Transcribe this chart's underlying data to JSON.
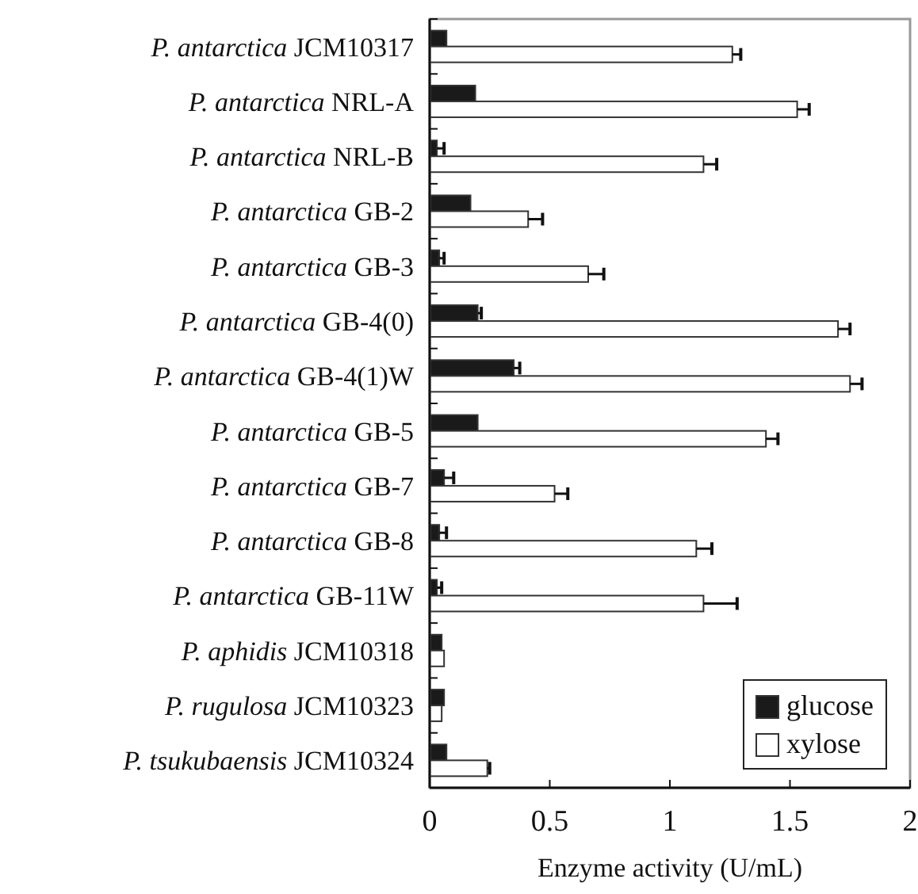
{
  "chart_data": {
    "type": "bar",
    "orientation": "horizontal",
    "xlabel": "Enzyme activity (U/mL)",
    "categories": [
      "P. antarctica JCM10317",
      "P. antarctica NRL-A",
      "P. antarctica NRL-B",
      "P. antarctica GB-2",
      "P. antarctica GB-3",
      "P. antarctica GB-4(0)",
      "P. antarctica GB-4(1)W",
      "P. antarctica GB-5",
      "P. antarctica GB-7",
      "P. antarctica GB-8",
      "P. antarctica GB-11W",
      "P. aphidis JCM10318",
      "P. rugulosa JCM10323",
      "P. tsukubaensis JCM10324"
    ],
    "series": [
      {
        "name": "glucose",
        "color": "#1a1a1a",
        "values": [
          0.07,
          0.19,
          0.03,
          0.17,
          0.04,
          0.2,
          0.35,
          0.2,
          0.06,
          0.04,
          0.03,
          0.05,
          0.06,
          0.07
        ],
        "errors": [
          null,
          null,
          0.03,
          null,
          0.02,
          0.015,
          0.025,
          null,
          0.04,
          0.03,
          0.02,
          null,
          null,
          null
        ]
      },
      {
        "name": "xylose",
        "color": "#ffffff",
        "values": [
          1.26,
          1.53,
          1.14,
          0.41,
          0.66,
          1.7,
          1.75,
          1.4,
          0.52,
          1.11,
          1.14,
          0.06,
          0.05,
          0.24
        ],
        "errors": [
          0.035,
          0.05,
          0.055,
          0.06,
          0.065,
          0.05,
          0.05,
          0.05,
          0.055,
          0.065,
          0.14,
          null,
          null,
          0.01
        ]
      }
    ],
    "xlim": [
      0,
      2
    ],
    "xticks": [
      0,
      0.5,
      1,
      1.5,
      2
    ],
    "grid": false,
    "legend": "bottom right"
  }
}
